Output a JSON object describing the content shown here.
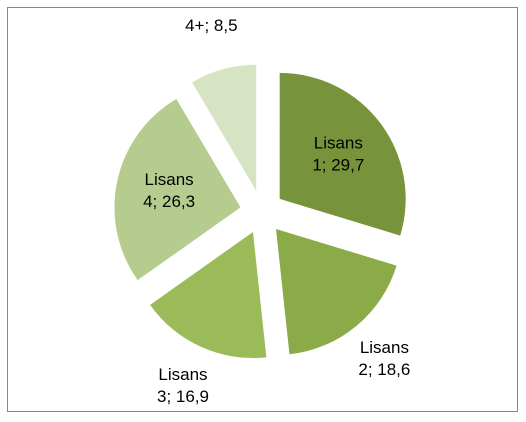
{
  "chart_data": {
    "type": "pie",
    "values": [
      29.7,
      18.6,
      16.9,
      26.3,
      8.5
    ],
    "value_labels": [
      [
        "Lisans",
        "1; 29,7"
      ],
      [
        "Lisans",
        "2; 18,6"
      ],
      [
        "Lisans",
        "3; 16,9"
      ],
      [
        "Lisans",
        "4; 26,3"
      ],
      [
        "4+; 8,5"
      ]
    ],
    "colors": [
      "#77933c",
      "#8aab48",
      "#9bbb59",
      "#b5cc8e",
      "#d7e4c3"
    ]
  }
}
